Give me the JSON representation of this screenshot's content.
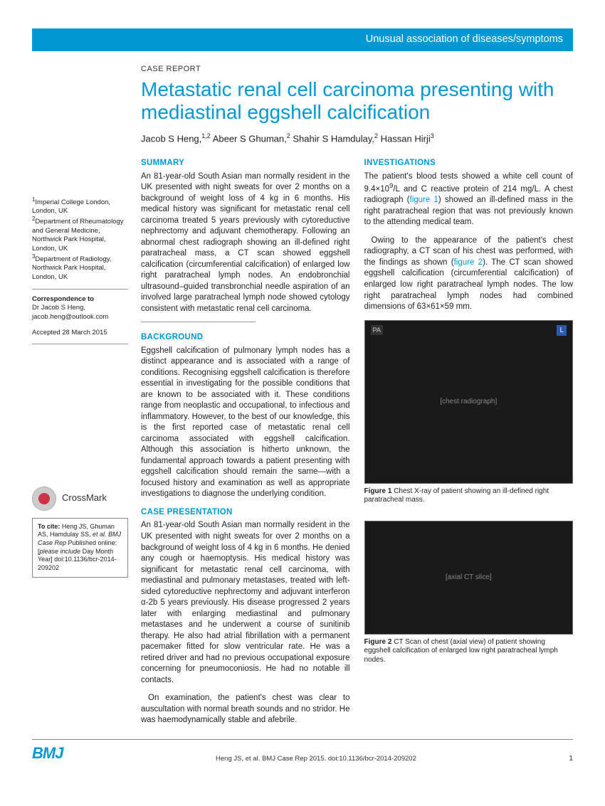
{
  "banner": "Unusual association of diseases/symptoms",
  "section_label": "CASE REPORT",
  "title": "Metastatic renal cell carcinoma presenting with mediastinal eggshell calcification",
  "authors_html": "Jacob S Heng,<sup>1,2</sup> Abeer S Ghuman,<sup>2</sup> Shahir S Hamdulay,<sup>2</sup> Hassan Hirji<sup>3</sup>",
  "affiliations": [
    "<sup>1</sup>Imperial College London, London, UK",
    "<sup>2</sup>Department of Rheumatology and General Medicine, Northwick Park Hospital, London, UK",
    "<sup>3</sup>Department of Radiology, Northwick Park Hospital, London, UK"
  ],
  "correspondence": {
    "head": "Correspondence to",
    "body": "Dr Jacob S Heng, jacob.heng@outlook.com"
  },
  "accepted": "Accepted 28 March 2015",
  "crossmark_label": "CrossMark",
  "cite_box": "<span class=\"cite-lead\">To cite:</span> Heng JS, Ghuman AS, Hamdulay SS, <i>et al. BMJ Case Rep</i> Published online: [<i>please include</i> Day Month Year] doi:10.1136/bcr-2014-209202",
  "summary": {
    "head": "SUMMARY",
    "text": "An 81-year-old South Asian man normally resident in the UK presented with night sweats for over 2 months on a background of weight loss of 4 kg in 6 months. His medical history was significant for metastatic renal cell carcinoma treated 5 years previously with cytoreductive nephrectomy and adjuvant chemotherapy. Following an abnormal chest radiograph showing an ill-defined right paratracheal mass, a CT scan showed eggshell calcification (circumferential calcification) of enlarged low right paratracheal lymph nodes. An endobronchial ultrasound–guided transbronchial needle aspiration of an involved large paratracheal lymph node showed cytology consistent with metastatic renal cell carcinoma."
  },
  "background": {
    "head": "BACKGROUND",
    "text": "Eggshell calcification of pulmonary lymph nodes has a distinct appearance and is associated with a range of conditions. Recognising eggshell calcification is therefore essential in investigating for the possible conditions that are known to be associated with it. These conditions range from neoplastic and occupational, to infectious and inflammatory. However, to the best of our knowledge, this is the first reported case of metastatic renal cell carcinoma associated with eggshell calcification. Although this association is hitherto unknown, the fundamental approach towards a patient presenting with eggshell calcification should remain the same—with a focused history and examination as well as appropriate investigations to diagnose the underlying condition."
  },
  "case": {
    "head": "CASE PRESENTATION",
    "p1": "An 81-year-old South Asian man normally resident in the UK presented with night sweats for over 2 months on a background of weight loss of 4 kg in 6 months. He denied any cough or haemoptysis. His medical history was significant for metastatic renal cell carcinoma, with mediastinal and pulmonary metastases, treated with left-sided cytoreductive nephrectomy and adjuvant interferon α-2b 5 years previously. His disease progressed 2 years later with enlarging mediastinal and pulmonary metastases and he underwent a course of sunitinib therapy. He also had atrial fibrillation with a permanent pacemaker fitted for slow ventricular rate. He was a retired driver and had no previous occupational exposure concerning for pneumoconiosis. He had no notable ill contacts.",
    "p2": "On examination, the patient's chest was clear to auscultation with normal breath sounds and no stridor. He was haemodynamically stable and afebrile."
  },
  "investigations": {
    "head": "INVESTIGATIONS",
    "p1": "The patient's blood tests showed a white cell count of 9.4×10<sup>9</sup>/L and C reactive protein of 214 mg/L. A chest radiograph (<span class=\"ref-link\">figure 1</span>) showed an ill-defined mass in the right paratracheal region that was not previously known to the attending medical team.",
    "p2": "Owing to the appearance of the patient's chest radiography, a CT scan of his chest was performed, with the findings as shown (<span class=\"ref-link\">figure 2</span>). The CT scan showed eggshell calcification (circumferential calcification) of enlarged low right paratracheal lymph nodes. The low right paratracheal lymph nodes had combined dimensions of 63×61×59 mm."
  },
  "figure1": {
    "label": "Figure 1",
    "caption": "Chest X-ray of patient showing an ill-defined right paratracheal mass.",
    "alt": "[chest radiograph]"
  },
  "figure2": {
    "label": "Figure 2",
    "caption": "CT Scan of chest (axial view) of patient showing eggshell calcification of enlarged low right paratracheal lymph nodes.",
    "alt": "[axial CT slice]"
  },
  "footer": {
    "logo": "BMJ",
    "cite": "Heng JS, et al. BMJ Case Rep 2015. doi:10.1136/bcr-2014-209202",
    "page": "1"
  },
  "colors": {
    "brand": "#0098d4"
  }
}
